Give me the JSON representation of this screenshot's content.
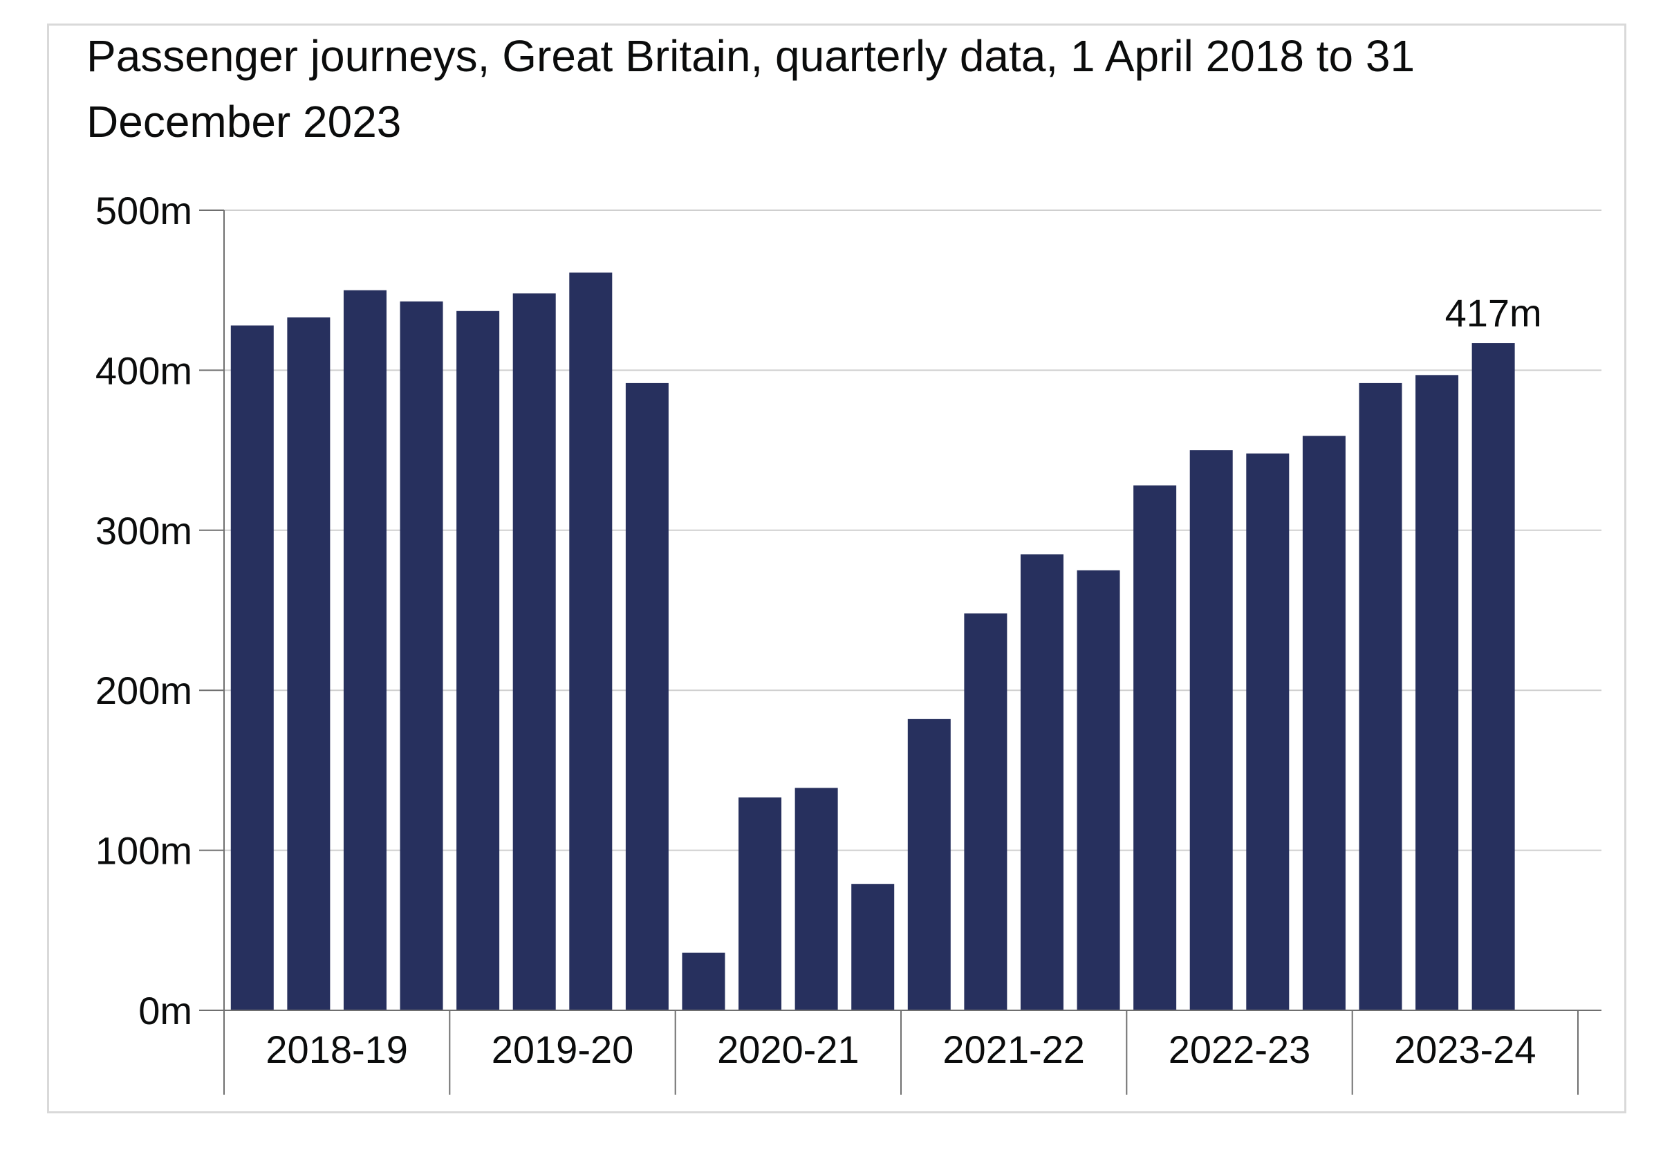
{
  "chart_data": {
    "type": "bar",
    "title": "Passenger journeys, Great Britain, quarterly data, 1 April 2018 to 31 December 2023",
    "xlabel": "",
    "ylabel": "",
    "ylim": [
      0,
      500
    ],
    "y_ticks": [
      0,
      100,
      200,
      300,
      400,
      500
    ],
    "y_tick_labels": [
      "0m",
      "100m",
      "200m",
      "300m",
      "400m",
      "500m"
    ],
    "grid": true,
    "bar_color": "#27305e",
    "groups": [
      {
        "label": "2018-19",
        "values": [
          428,
          433,
          450,
          443
        ]
      },
      {
        "label": "2019-20",
        "values": [
          437,
          448,
          461,
          392
        ]
      },
      {
        "label": "2020-21",
        "values": [
          36,
          133,
          139,
          79
        ]
      },
      {
        "label": "2021-22",
        "values": [
          182,
          248,
          285,
          275
        ]
      },
      {
        "label": "2022-23",
        "values": [
          328,
          350,
          348,
          359
        ]
      },
      {
        "label": "2023-24",
        "values": [
          392,
          397,
          417
        ]
      }
    ],
    "annotations": [
      {
        "group": 5,
        "bar": 2,
        "text": "417m"
      }
    ]
  }
}
